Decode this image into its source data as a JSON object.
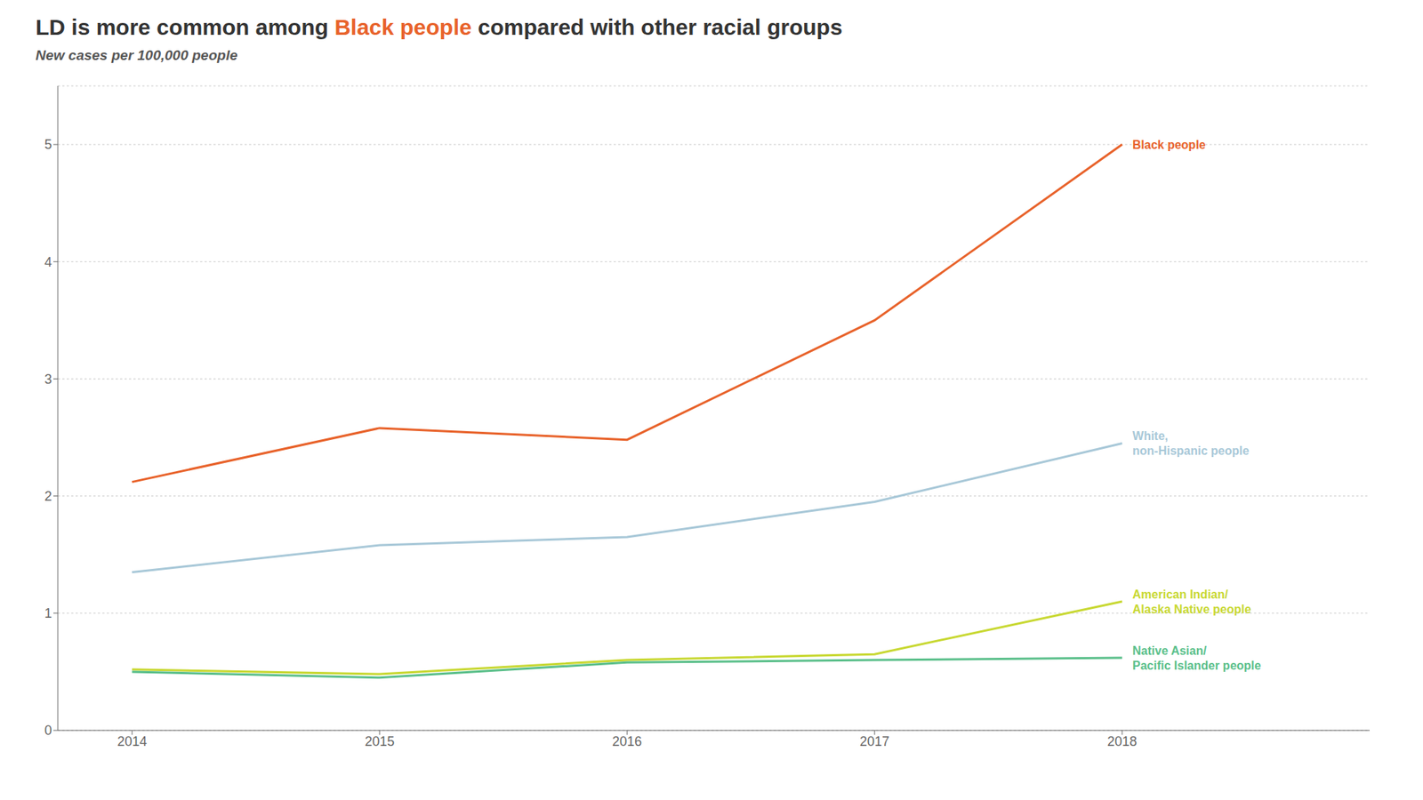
{
  "chart_data": {
    "type": "line",
    "title": "LD is more common among Black people compared with other racial groups",
    "subtitle": "New cases per 100,000 people",
    "x": [
      2014,
      2015,
      2016,
      2017,
      2018
    ],
    "series": [
      {
        "name": "Black people",
        "color": "#e8622a",
        "values": [
          2.12,
          2.58,
          2.48,
          3.5,
          5.0
        ]
      },
      {
        "name": "White,\nnon-Hispanic people",
        "color": "#a8c8d8",
        "values": [
          1.35,
          1.58,
          1.65,
          1.95,
          2.45
        ]
      },
      {
        "name": "American Indian/\nAlaska Native people",
        "color": "#c8d832",
        "values": [
          0.52,
          0.48,
          0.6,
          0.65,
          1.1
        ]
      },
      {
        "name": "Native Asian/\nPacific Islander people",
        "color": "#5abf8a",
        "values": [
          0.5,
          0.45,
          0.58,
          0.6,
          0.62
        ]
      }
    ],
    "xlim": [
      2013.7,
      2019.0
    ],
    "xticks": [
      2014,
      2015,
      2016,
      2017,
      2018
    ],
    "ylim": [
      0,
      5.5
    ],
    "yticks": [
      0,
      1,
      2,
      3,
      4,
      5
    ],
    "grid": true
  }
}
